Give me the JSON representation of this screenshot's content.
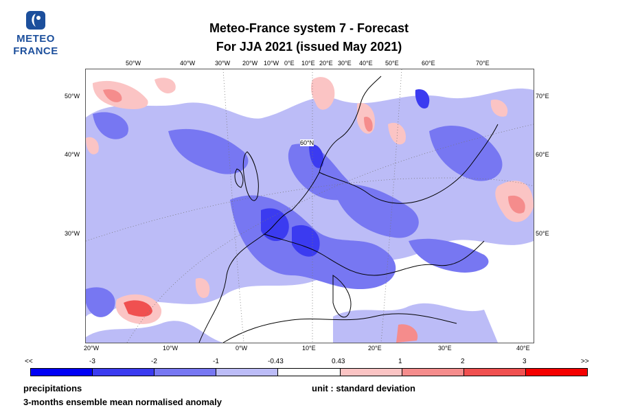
{
  "logo": {
    "line1": "METEO",
    "line2": "FRANCE"
  },
  "title": {
    "line1": "Meteo-France system 7  -  Forecast",
    "line2": "For JJA 2021      (issued May 2021)"
  },
  "map": {
    "label_60n": "60°N",
    "top_labels": [
      "50°W",
      "40°W",
      "30°W",
      "20°W",
      "10°W",
      "0°E",
      "10°E",
      "20°E",
      "30°E",
      "40°E",
      "50°E",
      "60°E",
      "70°E"
    ],
    "bottom_labels": [
      "20°W",
      "10°W",
      "0°W",
      "10°E",
      "20°E",
      "30°E",
      "40°E"
    ],
    "left_labels": [
      "50°W",
      "40°W",
      "30°W"
    ],
    "right_labels": [
      "70°E",
      "60°E",
      "50°E"
    ]
  },
  "colorbar": {
    "labels": [
      "<<",
      "-3",
      "-2",
      "-1",
      "-0.43",
      "0.43",
      "1",
      "2",
      "3",
      ">>"
    ],
    "colors": [
      "#0000f5",
      "#3b3bf0",
      "#7777f2",
      "#bcbcf7",
      "#ffffff",
      "#fbc4c4",
      "#f58c8c",
      "#f05050",
      "#f50000"
    ]
  },
  "footer": {
    "variable": "precipitations",
    "unit": "unit : standard deviation",
    "description": "3-months ensemble mean normalised anomaly"
  }
}
